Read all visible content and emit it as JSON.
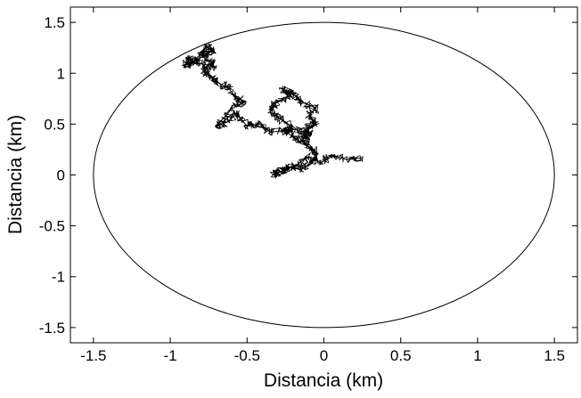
{
  "chart_data": {
    "type": "line",
    "title": "",
    "xlabel": "Distancia (km)",
    "ylabel": "Distancia (km)",
    "xlim": [
      -1.65,
      1.65
    ],
    "ylim": [
      -1.65,
      1.65
    ],
    "xticks": [
      -1.5,
      -1,
      -0.5,
      0,
      0.5,
      1,
      1.5
    ],
    "yticks": [
      1.5,
      1,
      0.5,
      0,
      -0.5,
      -1,
      -1.5
    ],
    "xtick_labels": [
      "-1.5",
      "-1",
      "-0.5",
      "0",
      "0.5",
      "1",
      "1.5"
    ],
    "ytick_labels": [
      "1.5",
      "1",
      "0.5",
      "0",
      "-0.5",
      "-1",
      "-1.5"
    ],
    "grid": false,
    "colors": {
      "line": "#000000",
      "axes": "#000000",
      "background": "#ffffff"
    },
    "series": [
      {
        "kind": "circle",
        "center": [
          0,
          0
        ],
        "radius": 1.5
      },
      {
        "kind": "random-walk",
        "x": [
          0.25,
          0.15,
          0.05,
          -0.02,
          -0.1,
          -0.18,
          -0.25,
          -0.33,
          -0.3,
          -0.22,
          -0.15,
          -0.08,
          -0.05,
          -0.1,
          -0.14,
          -0.08,
          -0.12,
          -0.05,
          -0.1,
          -0.05,
          -0.15,
          -0.2,
          -0.27,
          -0.22,
          -0.32,
          -0.35,
          -0.28,
          -0.22,
          -0.25,
          -0.2,
          -0.15,
          -0.12,
          -0.18,
          -0.35,
          -0.42,
          -0.5,
          -0.57,
          -0.63,
          -0.7,
          -0.6,
          -0.52,
          -0.58,
          -0.62,
          -0.68,
          -0.72,
          -0.78,
          -0.75,
          -0.83,
          -0.88,
          -0.9,
          -0.84,
          -0.8,
          -0.76,
          -0.72,
          -0.8,
          -0.75,
          -0.7
        ],
        "y": [
          0.17,
          0.15,
          0.2,
          0.12,
          0.18,
          0.1,
          0.05,
          0.0,
          0.02,
          0.08,
          0.05,
          0.12,
          0.22,
          0.28,
          0.35,
          0.4,
          0.45,
          0.5,
          0.58,
          0.66,
          0.72,
          0.8,
          0.85,
          0.78,
          0.7,
          0.62,
          0.55,
          0.48,
          0.42,
          0.38,
          0.32,
          0.4,
          0.45,
          0.42,
          0.5,
          0.48,
          0.6,
          0.52,
          0.48,
          0.65,
          0.72,
          0.78,
          0.85,
          0.9,
          0.95,
          1.02,
          1.08,
          1.1,
          1.15,
          1.08,
          1.12,
          1.2,
          1.26,
          1.22,
          1.18,
          1.12,
          1.05
        ]
      }
    ]
  }
}
